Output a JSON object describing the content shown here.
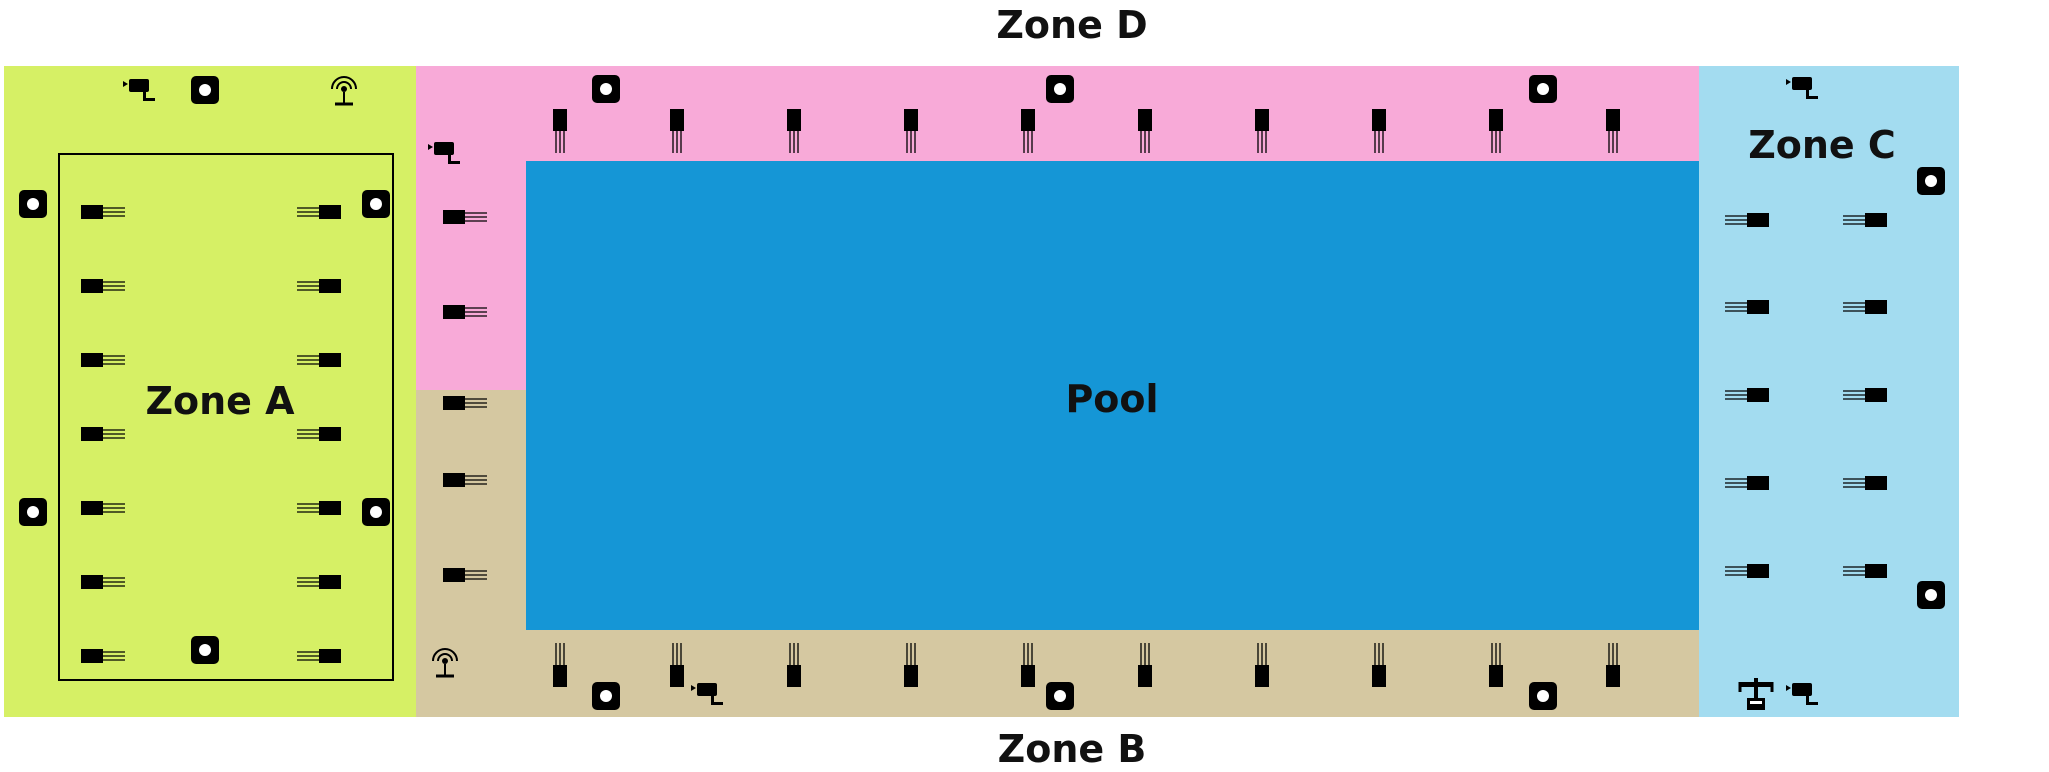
{
  "labels": {
    "zone_a": "Zone A",
    "zone_b": "Zone B",
    "zone_c": "Zone C",
    "zone_d": "Zone D",
    "pool": "Pool"
  },
  "colors": {
    "zone_a": "#d6f065",
    "zone_b": "#d5c8a1",
    "zone_c": "#a3dcf0",
    "zone_d": "#f8aad8",
    "pool": "#1596d6",
    "device": "#000000"
  },
  "icons": {
    "beach_chair": "beach-chair-icon",
    "speaker": "speaker-icon",
    "camera": "security-camera-icon",
    "wifi": "wifi-antenna-icon",
    "lifeguard": "lifeguard-station-icon"
  }
}
